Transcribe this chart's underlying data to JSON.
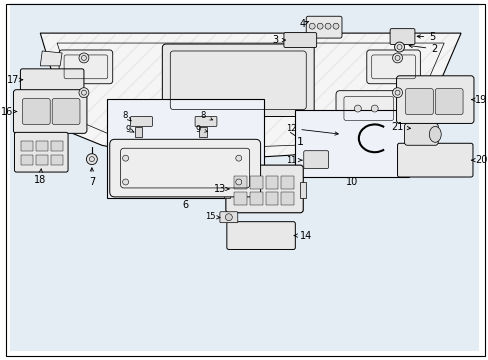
{
  "bg": "#ffffff",
  "lc": "#000000",
  "panel_bg": "#e8eef4",
  "stipple_color": "#c8d4e0",
  "part_fill": "#f0f0f0",
  "part_edge": "#000000",
  "fs": 7,
  "fs_small": 6
}
